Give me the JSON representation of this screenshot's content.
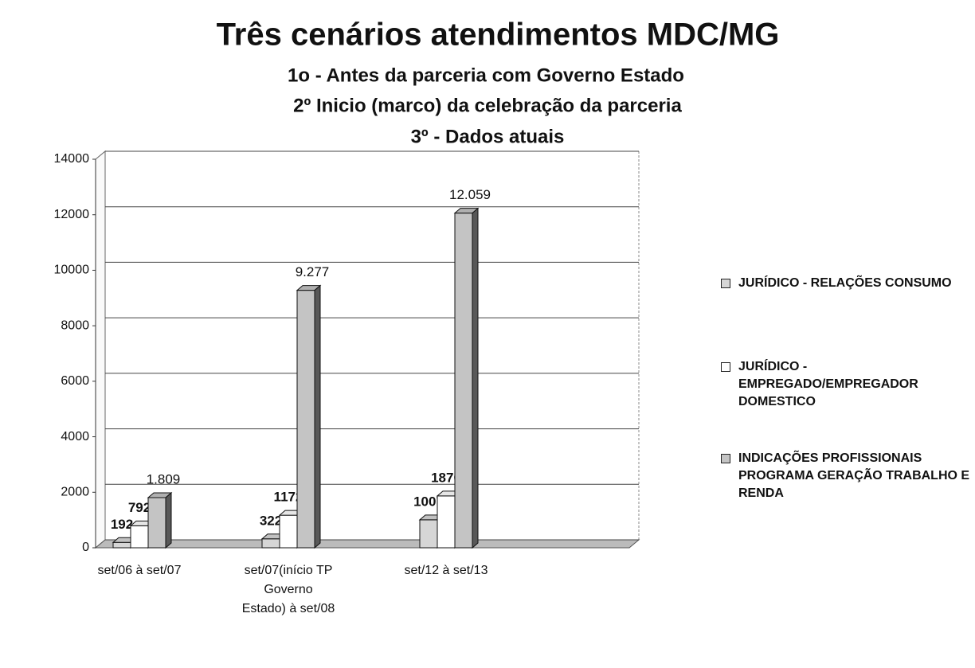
{
  "chart_data": {
    "type": "bar",
    "title": "Três cenários atendimentos MDC/MG",
    "subtitle": [
      "1o - Antes da parceria com Governo Estado",
      "2º Inicio (marco) da celebração da parceria",
      "3º -  Dados atuais"
    ],
    "categories": [
      "set/06 à set/07",
      "set/07(início TP Governo Estado) à set/08",
      "set/12 à set/13"
    ],
    "series": [
      {
        "name": "JURÍDICO - RELAÇÕES CONSUMO",
        "color": "#d6d6d6",
        "values": [
          192,
          322,
          1007
        ]
      },
      {
        "name": "JURÍDICO - EMPREGADO/EMPREGADOR DOMESTICO",
        "color": "#ffffff",
        "values": [
          792,
          1172,
          1870
        ]
      },
      {
        "name": "INDICAÇÕES PROFISSIONAIS PROGRAMA GERAÇÃO TRABALHO E RENDA",
        "color": "#c4c4c4",
        "values": [
          1809,
          9277,
          12059
        ],
        "value_labels": [
          "1.809",
          "9.277",
          "12.059"
        ]
      }
    ],
    "ylim": [
      0,
      14000
    ],
    "yticks": [
      0,
      2000,
      4000,
      6000,
      8000,
      10000,
      12000,
      14000
    ],
    "grid": true,
    "legend": "right"
  }
}
